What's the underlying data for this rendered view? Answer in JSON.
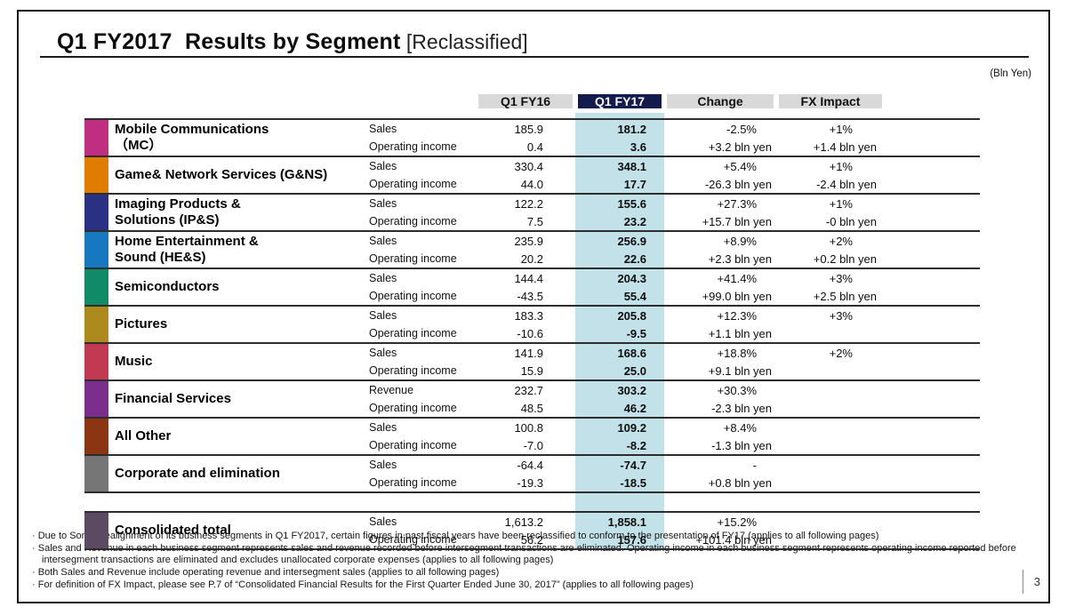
{
  "slide": {
    "title": "Q1 FY2017  Results by Segment",
    "title_suffix": " [Reclassified]",
    "unit_note": "(Bln Yen)",
    "page_number": "3",
    "footnote_bullet": "· "
  },
  "colors": {
    "header_bg": "#d9d9d9",
    "fy17_header_bg": "#141b4d",
    "fy17_column_highlight": "#c3e1e9"
  },
  "table": {
    "columns": [
      "Q1 FY16",
      "Q1 FY17",
      "Change",
      "FX Impact"
    ],
    "segments": [
      {
        "name": "Mobile Communications\n（MC）",
        "color": "#c02e82",
        "rows": [
          {
            "label": "Sales",
            "fy16": "185.9",
            "fy17": "181.2",
            "change": "-2.5%",
            "fx": "+1%"
          },
          {
            "label": "Operating income",
            "fy16": "0.4",
            "fy17": "3.6",
            "change": "+3.2 bln yen",
            "fx": "+1.4 bln yen"
          }
        ]
      },
      {
        "name": "Game& Network Services (G&NS)",
        "color": "#e07c00",
        "rows": [
          {
            "label": "Sales",
            "fy16": "330.4",
            "fy17": "348.1",
            "change": "+5.4%",
            "fx": "+1%"
          },
          {
            "label": "Operating income",
            "fy16": "44.0",
            "fy17": "17.7",
            "change": "-26.3 bln yen",
            "fx": "-2.4 bln yen"
          }
        ]
      },
      {
        "name": "Imaging Products &\nSolutions (IP&S)",
        "color": "#2a3183",
        "rows": [
          {
            "label": "Sales",
            "fy16": "122.2",
            "fy17": "155.6",
            "change": "+27.3%",
            "fx": "+1%"
          },
          {
            "label": "Operating income",
            "fy16": "7.5",
            "fy17": "23.2",
            "change": "+15.7 bln yen",
            "fx": "-0 bln yen"
          }
        ]
      },
      {
        "name": "Home Entertainment &\nSound (HE&S)",
        "color": "#1878bf",
        "rows": [
          {
            "label": "Sales",
            "fy16": "235.9",
            "fy17": "256.9",
            "change": "+8.9%",
            "fx": "+2%"
          },
          {
            "label": "Operating income",
            "fy16": "20.2",
            "fy17": "22.6",
            "change": "+2.3 bln yen",
            "fx": "+0.2 bln yen"
          }
        ]
      },
      {
        "name": "Semiconductors",
        "color": "#108a67",
        "rows": [
          {
            "label": "Sales",
            "fy16": "144.4",
            "fy17": "204.3",
            "change": "+41.4%",
            "fx": "+3%"
          },
          {
            "label": "Operating income",
            "fy16": "-43.5",
            "fy17": "55.4",
            "change": "+99.0 bln yen",
            "fx": "+2.5 bln yen"
          }
        ]
      },
      {
        "name": "Pictures",
        "color": "#ac8a1d",
        "rows": [
          {
            "label": "Sales",
            "fy16": "183.3",
            "fy17": "205.8",
            "change": "+12.3%",
            "fx": "+3%"
          },
          {
            "label": "Operating income",
            "fy16": "-10.6",
            "fy17": "-9.5",
            "change": "+1.1 bln yen",
            "fx": ""
          }
        ]
      },
      {
        "name": "Music",
        "color": "#c23a52",
        "rows": [
          {
            "label": "Sales",
            "fy16": "141.9",
            "fy17": "168.6",
            "change": "+18.8%",
            "fx": "+2%"
          },
          {
            "label": "Operating income",
            "fy16": "15.9",
            "fy17": "25.0",
            "change": "+9.1 bln yen",
            "fx": ""
          }
        ]
      },
      {
        "name": "Financial Services",
        "color": "#7c2e8d",
        "rows": [
          {
            "label": "Revenue",
            "fy16": "232.7",
            "fy17": "303.2",
            "change": "+30.3%",
            "fx": ""
          },
          {
            "label": "Operating income",
            "fy16": "48.5",
            "fy17": "46.2",
            "change": "-2.3 bln yen",
            "fx": ""
          }
        ]
      },
      {
        "name": "All Other",
        "color": "#8b3512",
        "rows": [
          {
            "label": "Sales",
            "fy16": "100.8",
            "fy17": "109.2",
            "change": "+8.4%",
            "fx": ""
          },
          {
            "label": "Operating income",
            "fy16": "-7.0",
            "fy17": "-8.2",
            "change": "-1.3 bln yen",
            "fx": ""
          }
        ]
      },
      {
        "name": "Corporate and elimination",
        "color": "#767676",
        "rows": [
          {
            "label": "Sales",
            "fy16": "-64.4",
            "fy17": "-74.7",
            "change": "-",
            "fx": ""
          },
          {
            "label": "Operating income",
            "fy16": "-19.3",
            "fy17": "-18.5",
            "change": "+0.8 bln yen",
            "fx": ""
          }
        ]
      }
    ],
    "total": {
      "name": "Consolidated total",
      "color": "#5c4a63",
      "rows": [
        {
          "label": "Sales",
          "fy16": "1,613.2",
          "fy17": "1,858.1",
          "change": "+15.2%",
          "fx": ""
        },
        {
          "label": "Operating income",
          "fy16": "56.2",
          "fy17": "157.6",
          "change": "+101.4 bln yen",
          "fx": ""
        }
      ]
    }
  },
  "footnotes": [
    "Due to Sony’s realignment of its business segments in Q1 FY2017, certain figures in past fiscal years have been reclassified to conform to the presentation of FY17 (applies to all following pages)",
    "Sales and Revenue in each business segment represents sales and revenue recorded before intersegment transactions are eliminated. Operating income in each business segment represents operating income reported before intersegment transactions are eliminated and excludes unallocated corporate expenses (applies to all following pages)",
    "Both Sales and Revenue include operating revenue and intersegment sales (applies to all following pages)",
    "For definition of FX Impact, please see P.7 of “Consolidated Financial Results for the First Quarter Ended June 30, 2017” (applies to all following pages)"
  ]
}
